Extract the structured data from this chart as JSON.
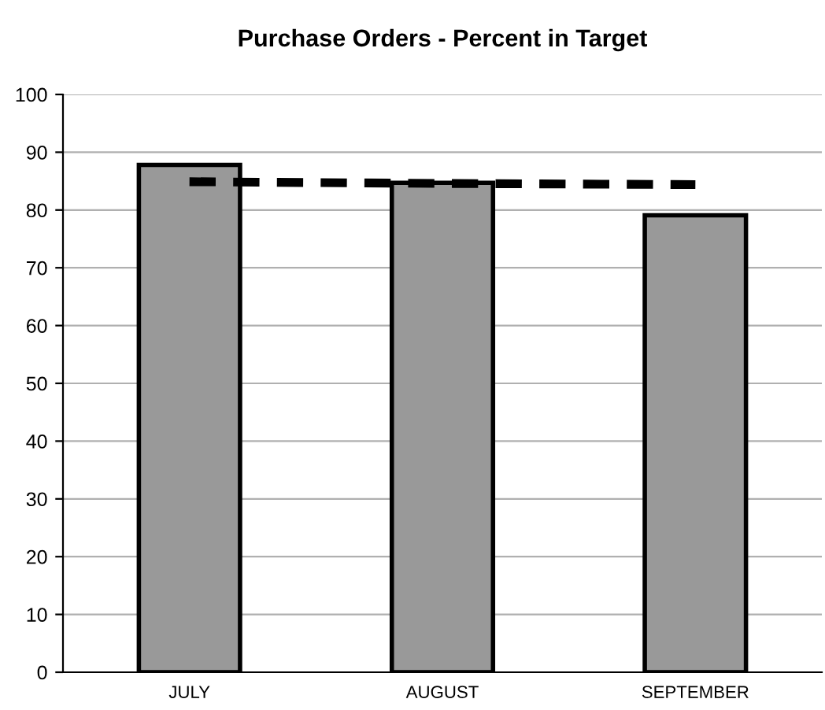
{
  "chart_data": {
    "type": "bar",
    "title": "Purchase Orders - Percent in Target",
    "categories": [
      "JULY",
      "AUGUST",
      "SEPTEMBER"
    ],
    "series": [
      {
        "color": "#999999",
        "values": [
          87.8,
          84.7,
          79.1
        ]
      },
      {
        "type": "line",
        "color": "#000000",
        "line_style": "dashed",
        "values": [
          84.9,
          84.6,
          84.4
        ]
      }
    ],
    "ylim": [
      0,
      100
    ],
    "yticks": [
      0,
      10,
      20,
      30,
      40,
      50,
      60,
      70,
      80,
      90,
      100
    ],
    "grid": "y",
    "legend": false
  }
}
